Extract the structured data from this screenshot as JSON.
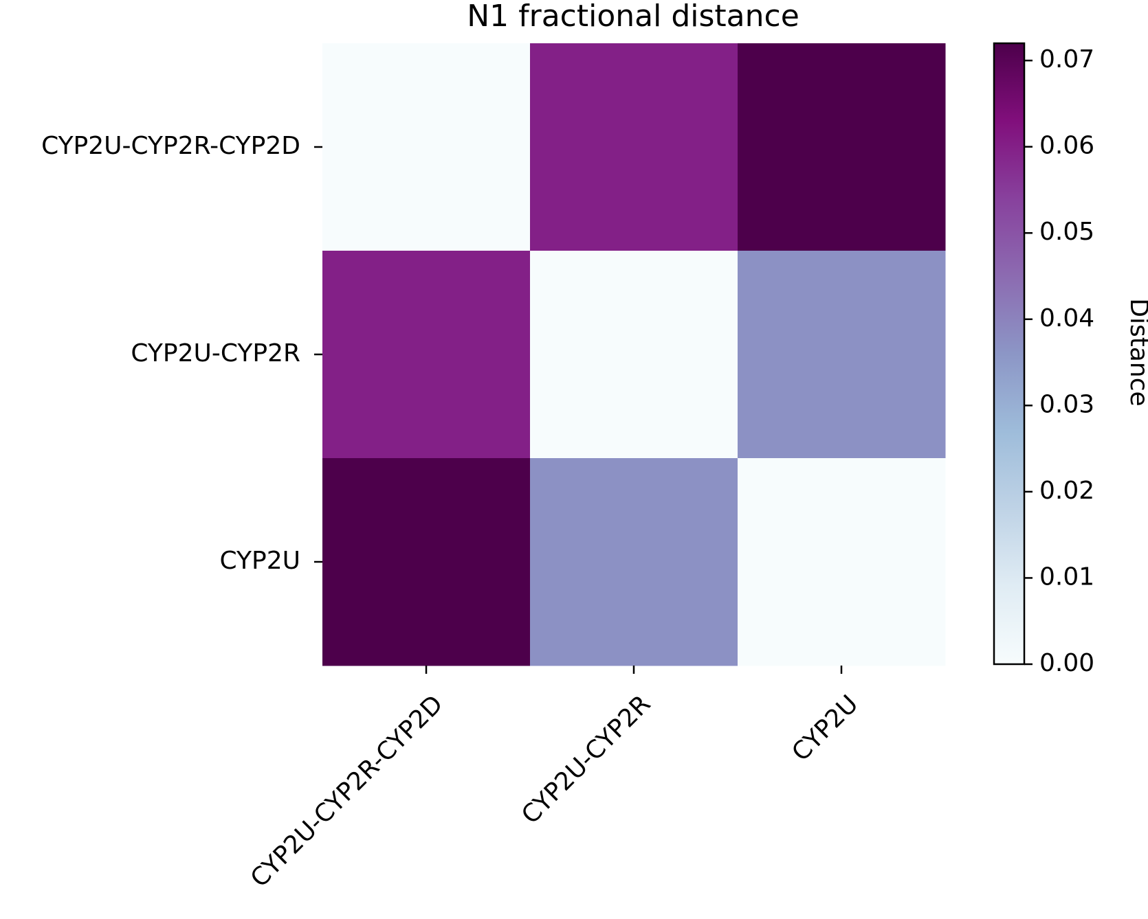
{
  "chart_data": {
    "type": "heatmap",
    "title": "N1 fractional distance",
    "x_categories": [
      "CYP2U-CYP2R-CYP2D",
      "CYP2U-CYP2R",
      "CYP2U"
    ],
    "y_categories": [
      "CYP2U-CYP2R-CYP2D",
      "CYP2U-CYP2R",
      "CYP2U"
    ],
    "values": [
      [
        0.0,
        0.06,
        0.072
      ],
      [
        0.06,
        0.0,
        0.037
      ],
      [
        0.072,
        0.037,
        0.0
      ]
    ],
    "colorbar": {
      "label": "Distance",
      "range": [
        0.0,
        0.072
      ],
      "ticks": [
        0.0,
        0.01,
        0.02,
        0.03,
        0.04,
        0.05,
        0.06,
        0.07
      ],
      "tick_labels": [
        "0.00",
        "0.01",
        "0.02",
        "0.03",
        "0.04",
        "0.05",
        "0.06",
        "0.07"
      ],
      "colormap": "BuPu",
      "colormap_stops": [
        "#f7fcfd",
        "#e0ecf4",
        "#bfd3e6",
        "#9ebcda",
        "#8c96c6",
        "#8c6bb1",
        "#88419d",
        "#810f7c",
        "#4d004b"
      ]
    }
  }
}
